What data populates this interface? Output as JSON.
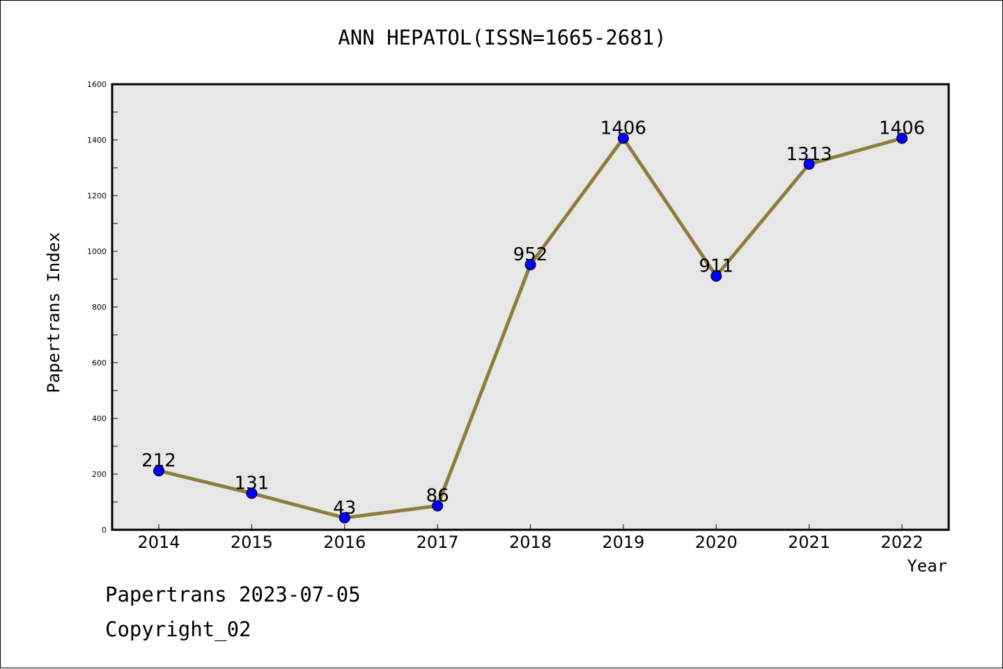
{
  "chart_data": {
    "type": "line",
    "title": "ANN HEPATOL(ISSN=1665-2681)",
    "xlabel": "Year",
    "ylabel": "Papertrans Index",
    "categories": [
      "2014",
      "2015",
      "2016",
      "2017",
      "2018",
      "2019",
      "2020",
      "2021",
      "2022"
    ],
    "series": [
      {
        "values": [
          212,
          131,
          43,
          86,
          952,
          1406,
          911,
          1313,
          1406
        ]
      }
    ],
    "data_labels": [
      "212",
      "131",
      "43",
      "86",
      "952",
      "1406",
      "911",
      "1313",
      "1406"
    ],
    "ylim": [
      0,
      1600
    ],
    "yticks": [
      0,
      200,
      400,
      600,
      800,
      1000,
      1200,
      1400,
      1600
    ],
    "ytick_labels": [
      "0",
      "200",
      "400",
      "600",
      "800",
      "1000",
      "1200",
      "1400",
      "1600"
    ],
    "grid": false,
    "colors": {
      "line": "#8f7c3a",
      "marker": "#0000ff",
      "plot_background": "#e7e7e7"
    }
  },
  "footer": {
    "stamp": "Papertrans 2023-07-05",
    "copyright": "Copyright_02"
  }
}
